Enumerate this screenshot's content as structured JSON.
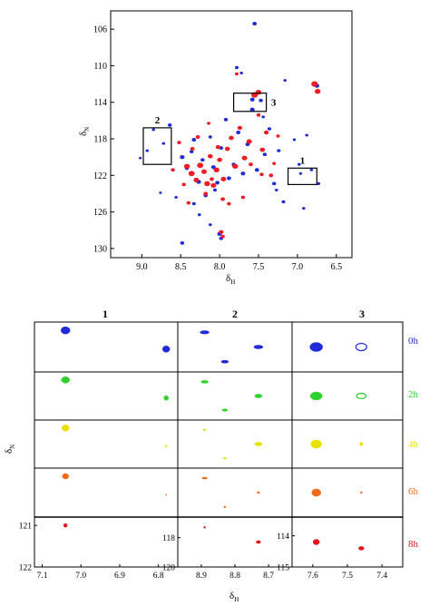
{
  "chart_data": [
    {
      "type": "scatter",
      "title": "",
      "xlabel": "δH",
      "ylabel": "δN",
      "xlim": [
        9.4,
        6.3
      ],
      "ylim": [
        131,
        104
      ],
      "x_reversed": true,
      "y_reversed": true,
      "xticks": [
        9.0,
        8.5,
        8.0,
        7.5,
        7.0,
        6.5
      ],
      "yticks": [
        106,
        110,
        114,
        118,
        122,
        126,
        130
      ],
      "series": [
        {
          "color": "#1f2bd6",
          "x": [
            7.55,
            7.78,
            7.58,
            6.75,
            8.85,
            8.93,
            8.72,
            8.64,
            8.48,
            8.42,
            8.36,
            8.33,
            8.27,
            8.22,
            8.18,
            8.12,
            8.08,
            8.03,
            7.98,
            7.92,
            7.88,
            7.82,
            7.76,
            7.7,
            7.64,
            7.58,
            7.52,
            7.47,
            7.42,
            7.36,
            7.3,
            7.24,
            7.18,
            6.98,
            6.88,
            6.82,
            6.73,
            6.92,
            8.0,
            7.98,
            8.48,
            8.33,
            8.06,
            9.02,
            8.56,
            8.26,
            8.12,
            7.72,
            7.44,
            7.04,
            6.96,
            7.16,
            7.27,
            8.76
          ],
          "y": [
            105.4,
            110.2,
            113.7,
            112.2,
            117.0,
            119.3,
            118.5,
            116.5,
            120.0,
            121.2,
            119.4,
            118.1,
            122.7,
            120.3,
            124.2,
            117.8,
            121.1,
            122.8,
            119.0,
            115.9,
            122.3,
            120.8,
            117.3,
            121.8,
            118.6,
            114.8,
            121.4,
            113.8,
            119.7,
            116.9,
            122.9,
            119.3,
            124.9,
            120.8,
            117.6,
            121.4,
            122.9,
            125.6,
            128.4,
            128.9,
            129.4,
            125.1,
            123.6,
            120.1,
            124.4,
            126.3,
            127.4,
            110.8,
            115.6,
            118.1,
            121.8,
            111.6,
            123.6,
            123.9
          ],
          "r": [
            2.4,
            2.0,
            2.5,
            2.6,
            1.8,
            1.8,
            1.8,
            2.2,
            2.6,
            2.4,
            2.2,
            2.4,
            2.6,
            2.2,
            2.3,
            2.0,
            2.5,
            2.4,
            2.2,
            2.2,
            2.4,
            2.2,
            2.4,
            2.5,
            2.4,
            2.6,
            2.4,
            2.2,
            2.2,
            2.1,
            2.2,
            2.0,
            2.0,
            1.8,
            1.8,
            1.8,
            2.0,
            1.8,
            2.6,
            2.2,
            2.2,
            2.0,
            2.0,
            1.6,
            1.8,
            1.8,
            1.8,
            1.8,
            1.8,
            1.7,
            1.7,
            1.7,
            1.8,
            1.6
          ]
        },
        {
          "color": "#ee1c25",
          "x": [
            8.42,
            8.36,
            8.3,
            8.25,
            8.2,
            8.16,
            8.12,
            8.08,
            8.04,
            8.0,
            7.95,
            7.9,
            7.85,
            7.8,
            7.74,
            7.68,
            7.62,
            7.55,
            7.5,
            7.45,
            7.4,
            7.34,
            8.35,
            8.28,
            8.18,
            8.1,
            8.02,
            7.96,
            7.88,
            7.7,
            7.6,
            7.5,
            7.46,
            6.78,
            6.74,
            7.98,
            7.96,
            8.52,
            8.6,
            7.3,
            7.25,
            8.46,
            8.4,
            7.78,
            8.14
          ],
          "y": [
            121.0,
            121.8,
            122.5,
            120.9,
            121.6,
            122.9,
            119.9,
            123.1,
            121.4,
            120.3,
            122.4,
            119.1,
            117.9,
            121.0,
            116.8,
            120.1,
            118.3,
            113.2,
            112.9,
            119.2,
            117.3,
            122.0,
            119.1,
            117.8,
            124.0,
            122.4,
            118.9,
            124.6,
            125.1,
            124.4,
            120.8,
            115.4,
            121.9,
            112.0,
            112.8,
            128.2,
            128.7,
            118.4,
            121.4,
            120.7,
            117.7,
            123.0,
            125.0,
            110.9,
            116.3
          ],
          "r": [
            3.2,
            3.4,
            3.0,
            3.4,
            3.0,
            3.2,
            2.8,
            3.0,
            3.2,
            2.8,
            3.0,
            2.8,
            2.8,
            3.2,
            2.6,
            3.0,
            3.0,
            3.6,
            3.2,
            2.8,
            2.6,
            2.4,
            2.4,
            2.4,
            2.4,
            2.4,
            2.6,
            2.4,
            2.2,
            2.2,
            2.4,
            2.2,
            2.2,
            3.6,
            3.2,
            2.6,
            2.2,
            2.2,
            2.2,
            2.0,
            2.0,
            2.2,
            2.2,
            2.0,
            2.0
          ]
        }
      ],
      "boxes": [
        {
          "label": "1",
          "x": [
            7.12,
            6.75
          ],
          "y": [
            121.2,
            123.0
          ]
        },
        {
          "label": "2",
          "x": [
            8.98,
            8.62
          ],
          "y": [
            116.8,
            120.8
          ]
        },
        {
          "label": "3",
          "x": [
            7.82,
            7.4
          ],
          "y": [
            113.0,
            115.0
          ]
        }
      ]
    },
    {
      "type": "scatter",
      "panel_label": "1",
      "xlabel": "",
      "ylabel": "",
      "xlim": [
        7.12,
        6.75
      ],
      "ylim": [
        122,
        120.8
      ],
      "xticks": [
        7.1,
        7.0,
        6.9,
        6.8
      ],
      "yticks": [
        121,
        122
      ],
      "peaks": {
        "0h": [
          [
            7.04,
            121.0,
            5,
            4
          ],
          [
            6.78,
            121.45,
            4,
            3.5
          ]
        ],
        "2h": [
          [
            7.04,
            121.0,
            4.5,
            3.5
          ],
          [
            6.78,
            121.45,
            2.5,
            2.5
          ]
        ],
        "4h": [
          [
            7.04,
            121.0,
            4,
            3.5
          ],
          [
            6.78,
            121.45,
            1,
            1
          ]
        ],
        "6h": [
          [
            7.04,
            121.0,
            3.5,
            3
          ],
          [
            6.78,
            121.45,
            0.6,
            0.6
          ]
        ],
        "8h": [
          [
            7.04,
            121.0,
            2,
            2
          ]
        ]
      }
    },
    {
      "type": "scatter",
      "panel_label": "2",
      "xlabel": "δH",
      "ylabel": "",
      "xlim": [
        8.97,
        8.63
      ],
      "ylim": [
        120,
        116.6
      ],
      "xticks": [
        8.9,
        8.8,
        8.7
      ],
      "yticks": [
        118,
        120
      ],
      "peaks": {
        "0h": [
          [
            8.89,
            117.3,
            5,
            1.8
          ],
          [
            8.73,
            118.3,
            5,
            2
          ],
          [
            8.83,
            119.3,
            4,
            1.6
          ]
        ],
        "2h": [
          [
            8.89,
            117.3,
            4,
            1.5
          ],
          [
            8.73,
            118.3,
            4,
            2
          ],
          [
            8.83,
            119.3,
            3,
            1.3
          ]
        ],
        "4h": [
          [
            8.89,
            117.3,
            1.5,
            1
          ],
          [
            8.73,
            118.3,
            4,
            2
          ],
          [
            8.83,
            119.3,
            1.5,
            1
          ]
        ],
        "6h": [
          [
            8.89,
            117.3,
            3,
            1
          ],
          [
            8.73,
            118.3,
            1.5,
            1
          ],
          [
            8.83,
            119.3,
            1,
            1
          ]
        ],
        "8h": [
          [
            8.89,
            117.3,
            1,
            1
          ],
          [
            8.73,
            118.3,
            2.5,
            1.6
          ]
        ]
      }
    },
    {
      "type": "scatter",
      "panel_label": "3",
      "xlabel": "",
      "ylabel": "",
      "xlim": [
        7.66,
        7.34
      ],
      "ylim": [
        115,
        113.4
      ],
      "xticks": [
        7.6,
        7.5,
        7.4
      ],
      "yticks": [
        114,
        115
      ],
      "peaks": {
        "0h": [
          [
            7.59,
            114.2,
            7,
            5
          ],
          [
            7.46,
            114.2,
            6,
            4
          ]
        ],
        "2h": [
          [
            7.59,
            114.2,
            6.5,
            4.5
          ],
          [
            7.46,
            114.2,
            5,
            3
          ]
        ],
        "4h": [
          [
            7.59,
            114.2,
            6,
            4.5
          ],
          [
            7.46,
            114.2,
            1.5,
            2
          ]
        ],
        "6h": [
          [
            7.59,
            114.2,
            5,
            4
          ],
          [
            7.46,
            114.2,
            1,
            1
          ]
        ],
        "8h": [
          [
            7.59,
            114.2,
            3.5,
            3
          ],
          [
            7.46,
            114.4,
            3,
            2
          ]
        ]
      }
    }
  ],
  "top": {
    "xtick_labels": [
      "9.0",
      "8.5",
      "8.0",
      "7.5",
      "7.0",
      "6.5"
    ],
    "ytick_labels": [
      "106",
      "110",
      "114",
      "118",
      "122",
      "126",
      "130"
    ],
    "box_labels": [
      "1",
      "2",
      "3"
    ]
  },
  "bottom": {
    "panel_titles": [
      "1",
      "2",
      "3"
    ],
    "row_labels": [
      "0h",
      "2h",
      "4h",
      "6h",
      "8h"
    ],
    "row_colors": [
      "#1f2bd6",
      "#2ed12e",
      "#e8e000",
      "#ee6a1a",
      "#e0141e"
    ],
    "p1": {
      "xtick_labels": [
        "7.1",
        "7.0",
        "6.9",
        "6.8"
      ],
      "ytick_labels": [
        "121",
        "122"
      ]
    },
    "p2": {
      "xtick_labels": [
        "8.9",
        "8.8",
        "8.7"
      ],
      "ytick_labels": [
        "118",
        "120"
      ]
    },
    "p3": {
      "xtick_labels": [
        "7.6",
        "7.5",
        "7.4"
      ],
      "ytick_labels": [
        "114",
        "115"
      ]
    }
  },
  "axis_labels": {
    "top_x_main": "δ",
    "top_x_sub": "H",
    "top_y_main": "δ",
    "top_y_sub": "N",
    "bottom_x_main": "δ",
    "bottom_x_sub": "H",
    "bottom_y_main": "δ",
    "bottom_y_sub": "N"
  }
}
